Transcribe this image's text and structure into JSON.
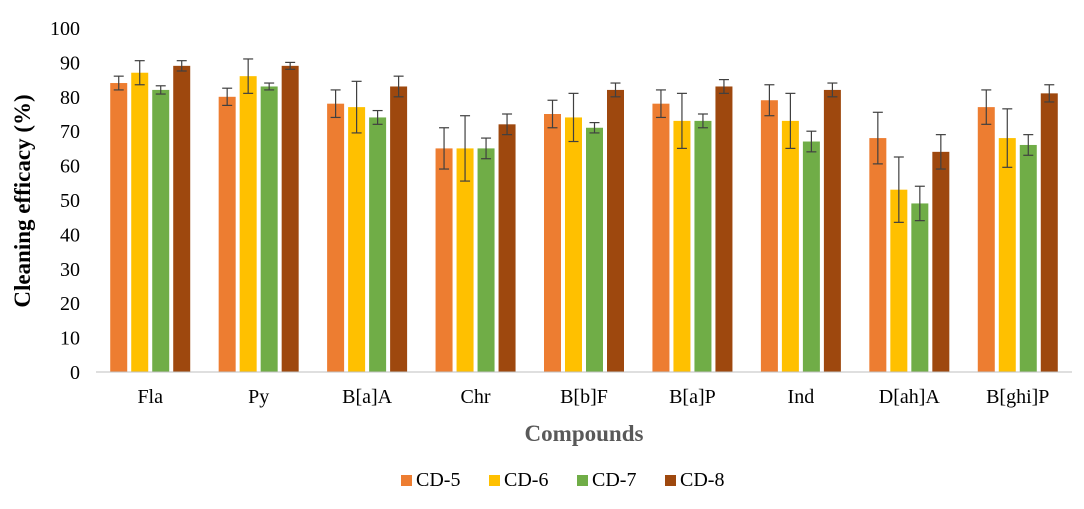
{
  "chart_data": {
    "type": "bar",
    "title": "",
    "xlabel": "Compounds",
    "ylabel": "Cleaning efficacy (%)",
    "ylim": [
      0,
      100
    ],
    "yticks": [
      0,
      10,
      20,
      30,
      40,
      50,
      60,
      70,
      80,
      90,
      100
    ],
    "grid": false,
    "legend_position": "bottom",
    "categories": [
      "Fla",
      "Py",
      "B[a]A",
      "Chr",
      "B[b]F",
      "B[a]P",
      "Ind",
      "D[ah]A",
      "B[ghi]P"
    ],
    "series": [
      {
        "name": "CD-5",
        "color": "#ED7D31",
        "values": [
          84,
          80,
          78,
          65,
          75,
          78,
          79,
          68,
          77
        ],
        "errors": [
          2,
          2.5,
          4,
          6,
          4,
          4,
          4.5,
          7.5,
          5
        ]
      },
      {
        "name": "CD-6",
        "color": "#FFC000",
        "values": [
          87,
          86,
          77,
          65,
          74,
          73,
          73,
          53,
          68
        ],
        "errors": [
          3.5,
          5,
          7.5,
          9.5,
          7,
          8,
          8,
          9.5,
          8.5
        ]
      },
      {
        "name": "CD-7",
        "color": "#70AD47",
        "values": [
          82,
          83,
          74,
          65,
          71,
          73,
          67,
          49,
          66
        ],
        "errors": [
          1.2,
          1,
          2,
          3,
          1.5,
          2,
          3,
          5,
          3
        ]
      },
      {
        "name": "CD-8",
        "color": "#9E480E",
        "values": [
          89,
          89,
          83,
          72,
          82,
          83,
          82,
          64,
          81
        ],
        "errors": [
          1.5,
          1,
          3,
          3,
          2,
          2,
          2,
          5,
          2.5
        ]
      }
    ]
  }
}
